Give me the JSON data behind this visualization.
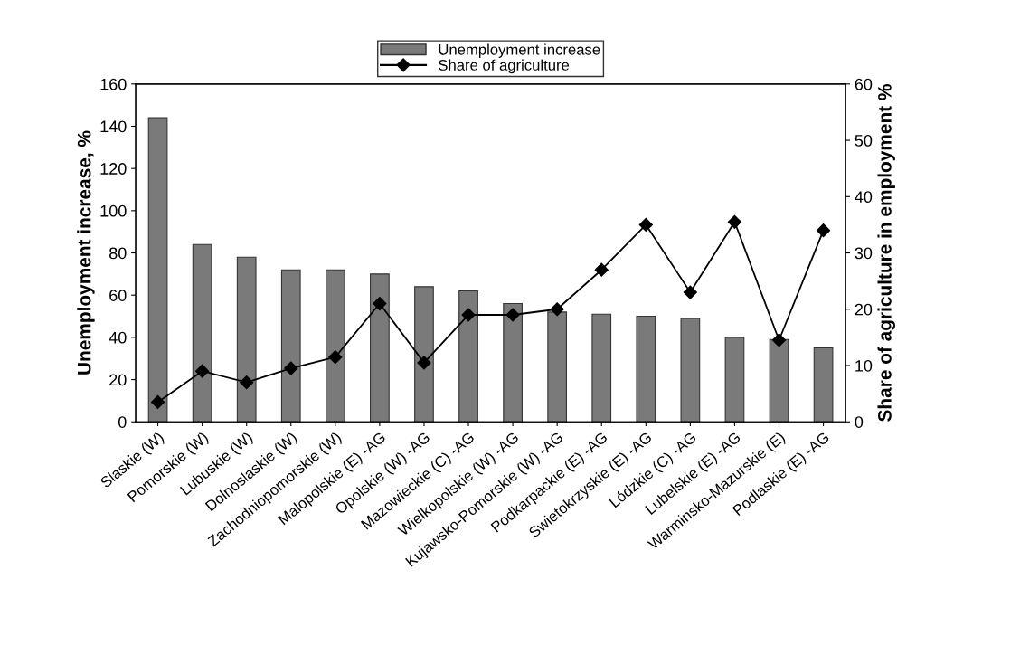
{
  "chart_data": {
    "type": "bar",
    "ylabel": "Unemployment increase, %",
    "y2label": "Share of agriculture in employment %",
    "categories": [
      "Slaskie (W)",
      "Pomorskie (W)",
      "Lubuskie (W)",
      "Dolnoslaskie (W)",
      "Zachodniopomorskie (W)",
      "Malopolskie (E) -AG",
      "Opolskie (W) -AG",
      "Mazowieckie (C) -AG",
      "Wielkopolskie (W) -AG",
      "Kujawsko-Pomorskie (W) -AG",
      "Podkarpackie (E) -AG",
      "Swietokrzyskie (E) -AG",
      "Lódzkie (C) -AG",
      "Lubelskie (E) -AG",
      "Warminsko-Mazurskie (E)",
      "Podlaskie (E) -AG"
    ],
    "series": [
      {
        "name": "Unemployment increase",
        "color": "#7a7a7a",
        "values": [
          144,
          84,
          78,
          72,
          72,
          70,
          64,
          62,
          56,
          52,
          51,
          50,
          49,
          40,
          39,
          35
        ]
      },
      {
        "name": "Share of agriculture",
        "type": "line",
        "axis": "y2",
        "color": "#000000",
        "marker": "diamond",
        "values": [
          3.5,
          9,
          7,
          9.5,
          11.5,
          21,
          10.5,
          19,
          19,
          20,
          27,
          35,
          23,
          35.5,
          14.5,
          34
        ]
      }
    ],
    "ylim": [
      0,
      160
    ],
    "yticks": [
      0,
      20,
      40,
      60,
      80,
      100,
      120,
      140,
      160
    ],
    "y2lim": [
      0,
      60
    ],
    "y2ticks": [
      0,
      10,
      20,
      30,
      40,
      50,
      60
    ],
    "grid": false,
    "legend": "top"
  }
}
